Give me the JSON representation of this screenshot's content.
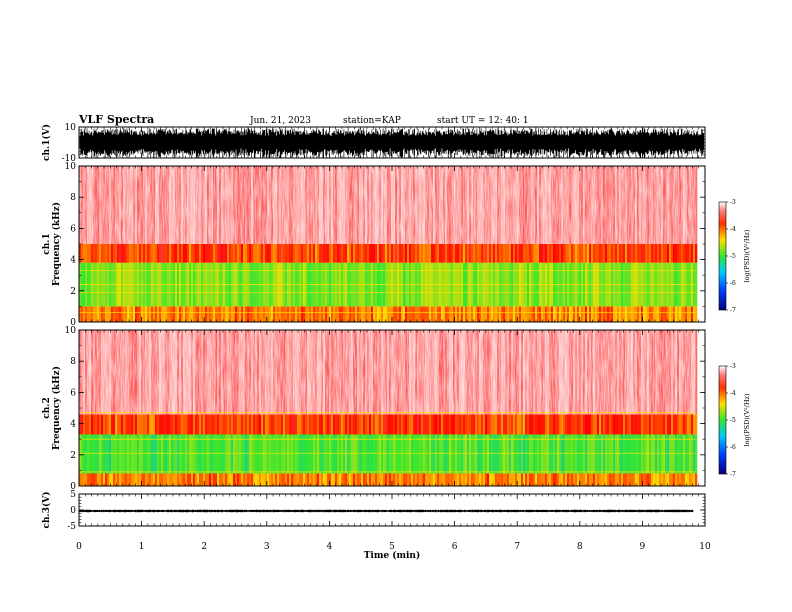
{
  "header": {
    "title": "VLF Spectra",
    "date": "Jun. 21, 2023",
    "station": "station=KAP",
    "start": "start UT = 12: 40: 1"
  },
  "colors": {
    "low": "#00007f",
    "mid_low": "#00aaff",
    "mid": "#32e632",
    "mid_high": "#ffdd00",
    "high": "#ff0000",
    "max": "#ffffff"
  },
  "chart_data": [
    {
      "type": "line",
      "name": "ch1-waveform",
      "ylabel": "ch.1(V)",
      "ylim": [
        -10,
        10
      ],
      "ytick_labels": [
        "10",
        "-10"
      ],
      "xlim": [
        0,
        10
      ],
      "description_of_series": "dense oscillating waveform nearly filling the range",
      "amplitude_typical": 8
    },
    {
      "type": "heatmap",
      "name": "ch1-spectrogram",
      "ylabel": "ch.1\nFrequency (kHz)",
      "ylabel_lines": [
        "ch.1",
        "Frequency (kHz)"
      ],
      "ylim": [
        0,
        10
      ],
      "ytick_labels": [
        "0",
        "2",
        "4",
        "6",
        "8",
        "10"
      ],
      "xlim": [
        0,
        9.85
      ],
      "colorbar": {
        "label": "log(PSD)(V²/Hz)",
        "range": [
          -7,
          -3
        ],
        "ticks": [
          "-3",
          "-4",
          "-5",
          "-6",
          "-7"
        ]
      },
      "bands": [
        {
          "fmin": 0.0,
          "fmax": 1.0,
          "log_psd": -4.0
        },
        {
          "fmin": 1.0,
          "fmax": 3.8,
          "log_psd": -4.7
        },
        {
          "fmin": 3.8,
          "fmax": 5.0,
          "log_psd": -3.8
        },
        {
          "fmin": 5.0,
          "fmax": 10.0,
          "log_psd": -3.2
        }
      ],
      "lines_khz": [
        0.6,
        1.9,
        2.4,
        3.3
      ]
    },
    {
      "type": "heatmap",
      "name": "ch2-spectrogram",
      "ylabel": "ch.2\nFrequency (kHz)",
      "ylabel_lines": [
        "ch.2",
        "Frequency (kHz)"
      ],
      "ylim": [
        0,
        10
      ],
      "ytick_labels": [
        "0",
        "2",
        "4",
        "6",
        "8",
        "10"
      ],
      "xlim": [
        0,
        9.85
      ],
      "colorbar": {
        "label": "log(PSD)(V²/Hz)",
        "range": [
          -7,
          -3
        ],
        "ticks": [
          "-3",
          "-4",
          "-5",
          "-6",
          "-7"
        ]
      },
      "bands": [
        {
          "fmin": 0.0,
          "fmax": 0.8,
          "log_psd": -4.0
        },
        {
          "fmin": 0.8,
          "fmax": 3.3,
          "log_psd": -4.9
        },
        {
          "fmin": 3.3,
          "fmax": 4.6,
          "log_psd": -3.8
        },
        {
          "fmin": 4.6,
          "fmax": 10.0,
          "log_psd": -3.2
        }
      ],
      "lines_khz": [
        0.9,
        2.1,
        3.0,
        4.7
      ]
    },
    {
      "type": "line",
      "name": "ch3-waveform",
      "ylabel": "ch.3(V)",
      "ylim": [
        -5,
        5
      ],
      "ytick_labels": [
        "5",
        "0",
        "-5"
      ],
      "xlim": [
        0,
        10
      ],
      "description_of_series": "nearly constant narrow band just below zero",
      "level": -0.3,
      "amplitude_typical": 0.35
    }
  ],
  "x_axis": {
    "label": "Time (min)",
    "range": [
      0,
      10
    ],
    "ticks": [
      "0",
      "1",
      "2",
      "3",
      "4",
      "5",
      "6",
      "7",
      "8",
      "9",
      "10"
    ]
  }
}
